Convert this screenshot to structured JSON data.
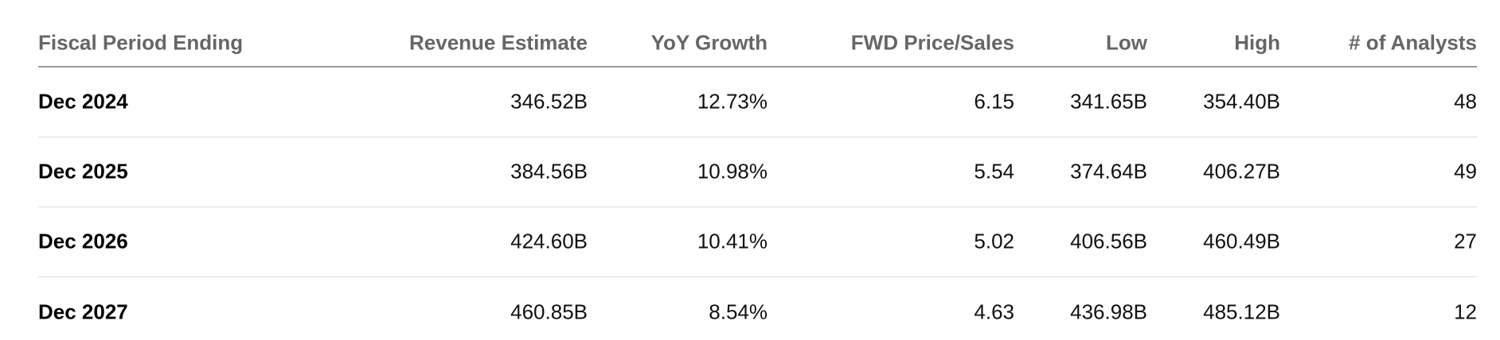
{
  "table": {
    "headers": [
      "Fiscal Period Ending",
      "Revenue Estimate",
      "YoY Growth",
      "FWD Price/Sales",
      "Low",
      "High",
      "# of Analysts"
    ],
    "rows": [
      [
        "Dec 2024",
        "346.52B",
        "12.73%",
        "6.15",
        "341.65B",
        "354.40B",
        "48"
      ],
      [
        "Dec 2025",
        "384.56B",
        "10.98%",
        "5.54",
        "374.64B",
        "406.27B",
        "49"
      ],
      [
        "Dec 2026",
        "424.60B",
        "10.41%",
        "5.02",
        "406.56B",
        "460.49B",
        "27"
      ],
      [
        "Dec 2027",
        "460.85B",
        "8.54%",
        "4.63",
        "436.98B",
        "485.12B",
        "12"
      ]
    ]
  }
}
